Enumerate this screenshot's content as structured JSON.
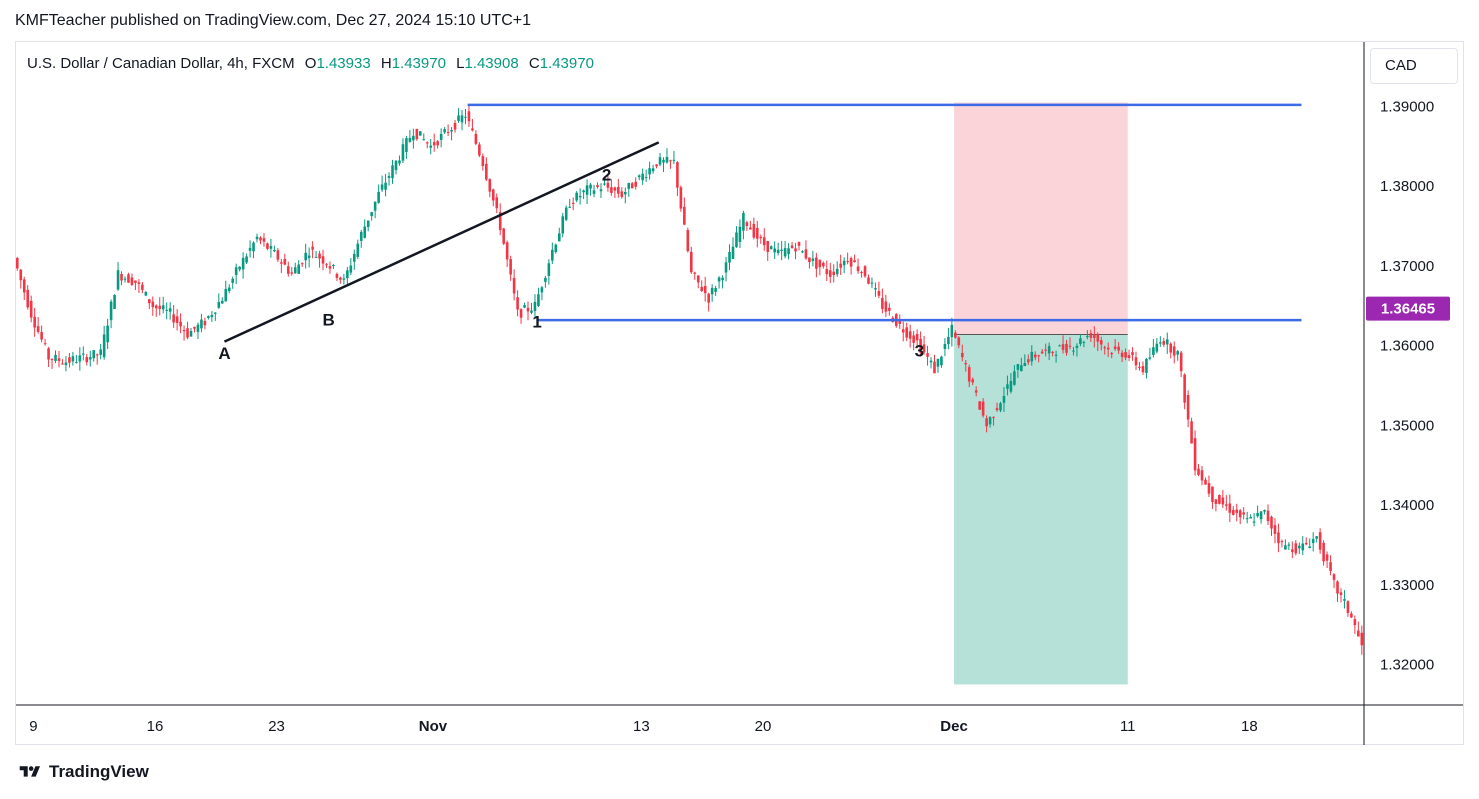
{
  "header": {
    "publisher_line": "KMFTeacher published on TradingView.com, Dec 27, 2024 15:10 UTC+1"
  },
  "legend": {
    "symbol": "U.S. Dollar / Canadian Dollar, 4h, FXCM",
    "o_label": "O",
    "o_value": "1.43933",
    "h_label": "H",
    "h_value": "1.43970",
    "l_label": "L",
    "l_value": "1.43908",
    "c_label": "C",
    "c_value": "1.43970"
  },
  "currency": "CAD",
  "footer": {
    "brand": "TradingView"
  },
  "colors": {
    "up": "#089981",
    "down": "#f23645",
    "level_line": "#3d6be8",
    "trend_line": "#131722",
    "stop_zone": "#f8c6cc",
    "target_zone": "#a8dcd1",
    "price_tag": "#9c27b0"
  },
  "chart_data": {
    "type": "candlestick",
    "timeframe": "4h",
    "y_axis": {
      "ylim": [
        1.3158,
        1.3966
      ],
      "ticks": [
        "1.39000",
        "1.38000",
        "1.37000",
        "1.36000",
        "1.35000",
        "1.34000",
        "1.33000",
        "1.32000"
      ],
      "position": "right"
    },
    "x_axis": {
      "ticks": [
        {
          "label": "9",
          "date": "2024-10-09"
        },
        {
          "label": "16",
          "date": "2024-10-16"
        },
        {
          "label": "23",
          "date": "2024-10-23"
        },
        {
          "label": "Nov",
          "date": "2024-11-01"
        },
        {
          "label": "13",
          "date": "2024-11-13"
        },
        {
          "label": "20",
          "date": "2024-11-20"
        },
        {
          "label": "Dec",
          "date": "2024-12-01"
        },
        {
          "label": "11",
          "date": "2024-12-11"
        },
        {
          "label": "18",
          "date": "2024-12-18"
        }
      ]
    },
    "current_price": "1.36465",
    "price_path": [
      [
        "2024-10-08",
        1.371
      ],
      [
        "2024-10-09",
        1.364
      ],
      [
        "2024-10-10",
        1.3585
      ],
      [
        "2024-10-11",
        1.358
      ],
      [
        "2024-10-12",
        1.3585
      ],
      [
        "2024-10-13",
        1.359
      ],
      [
        "2024-10-14",
        1.369
      ],
      [
        "2024-10-15",
        1.368
      ],
      [
        "2024-10-16",
        1.365
      ],
      [
        "2024-10-17",
        1.364
      ],
      [
        "2024-10-18",
        1.3615
      ],
      [
        "2024-10-19",
        1.363
      ],
      [
        "2024-10-20",
        1.366
      ],
      [
        "2024-10-21",
        1.37
      ],
      [
        "2024-10-22",
        1.3735
      ],
      [
        "2024-10-23",
        1.3715
      ],
      [
        "2024-10-24",
        1.369
      ],
      [
        "2024-10-25",
        1.372
      ],
      [
        "2024-10-26",
        1.3705
      ],
      [
        "2024-10-27",
        1.368
      ],
      [
        "2024-10-28",
        1.374
      ],
      [
        "2024-10-29",
        1.379
      ],
      [
        "2024-10-30",
        1.383
      ],
      [
        "2024-10-31",
        1.387
      ],
      [
        "2024-11-01",
        1.385
      ],
      [
        "2024-11-02",
        1.387
      ],
      [
        "2024-11-03",
        1.389
      ],
      [
        "2024-11-04",
        1.383
      ],
      [
        "2024-11-05",
        1.375
      ],
      [
        "2024-11-06",
        1.364
      ],
      [
        "2024-11-07",
        1.365
      ],
      [
        "2024-11-08",
        1.372
      ],
      [
        "2024-11-09",
        1.378
      ],
      [
        "2024-11-10",
        1.3795
      ],
      [
        "2024-11-11",
        1.38
      ],
      [
        "2024-11-12",
        1.379
      ],
      [
        "2024-11-13",
        1.381
      ],
      [
        "2024-11-14",
        1.383
      ],
      [
        "2024-11-15",
        1.383
      ],
      [
        "2024-11-16",
        1.369
      ],
      [
        "2024-11-17",
        1.366
      ],
      [
        "2024-11-18",
        1.37
      ],
      [
        "2024-11-19",
        1.376
      ],
      [
        "2024-11-20",
        1.373
      ],
      [
        "2024-11-21",
        1.3715
      ],
      [
        "2024-11-22",
        1.3725
      ],
      [
        "2024-11-23",
        1.3705
      ],
      [
        "2024-11-24",
        1.369
      ],
      [
        "2024-11-25",
        1.371
      ],
      [
        "2024-11-26",
        1.369
      ],
      [
        "2024-11-27",
        1.365
      ],
      [
        "2024-11-28",
        1.3625
      ],
      [
        "2024-11-29",
        1.3605
      ],
      [
        "2024-11-30",
        1.357
      ],
      [
        "2024-12-01",
        1.362
      ],
      [
        "2024-12-02",
        1.356
      ],
      [
        "2024-12-03",
        1.35
      ],
      [
        "2024-12-04",
        1.354
      ],
      [
        "2024-12-05",
        1.358
      ],
      [
        "2024-12-06",
        1.359
      ],
      [
        "2024-12-07",
        1.3595
      ],
      [
        "2024-12-08",
        1.36
      ],
      [
        "2024-12-09",
        1.3615
      ],
      [
        "2024-12-10",
        1.3595
      ],
      [
        "2024-12-11",
        1.359
      ],
      [
        "2024-12-12",
        1.357
      ],
      [
        "2024-12-13",
        1.361
      ],
      [
        "2024-12-14",
        1.359
      ],
      [
        "2024-12-15",
        1.345
      ],
      [
        "2024-12-16",
        1.341
      ],
      [
        "2024-12-17",
        1.3395
      ],
      [
        "2024-12-18",
        1.338
      ],
      [
        "2024-12-19",
        1.339
      ],
      [
        "2024-12-20",
        1.335
      ],
      [
        "2024-12-21",
        1.3345
      ],
      [
        "2024-12-22",
        1.336
      ],
      [
        "2024-12-23",
        1.33
      ],
      [
        "2024-12-24",
        1.326
      ],
      [
        "2024-12-24.6",
        1.3222
      ]
    ],
    "horizontal_levels": [
      {
        "price": 1.3902,
        "from": "2024-11-03",
        "to": "2024-12-21"
      },
      {
        "price": 1.3632,
        "from": "2024-11-07",
        "to": "2024-12-21"
      }
    ],
    "trend_line": {
      "from": [
        "2024-10-20",
        1.3605
      ],
      "to": [
        "2024-11-14",
        1.3855
      ]
    },
    "annotations": [
      {
        "text": "A",
        "date": "2024-10-20",
        "price": 1.3591
      },
      {
        "text": "B",
        "date": "2024-10-26",
        "price": 1.3633
      },
      {
        "text": "1",
        "date": "2024-11-07",
        "price": 1.363
      },
      {
        "text": "2",
        "date": "2024-11-11",
        "price": 1.3815
      },
      {
        "text": "3",
        "date": "2024-11-29",
        "price": 1.3594
      }
    ],
    "position": {
      "type": "short",
      "from": "2024-12-01",
      "to": "2024-12-11",
      "entry": 1.3614,
      "stop": 1.3905,
      "target": 1.3175
    }
  }
}
